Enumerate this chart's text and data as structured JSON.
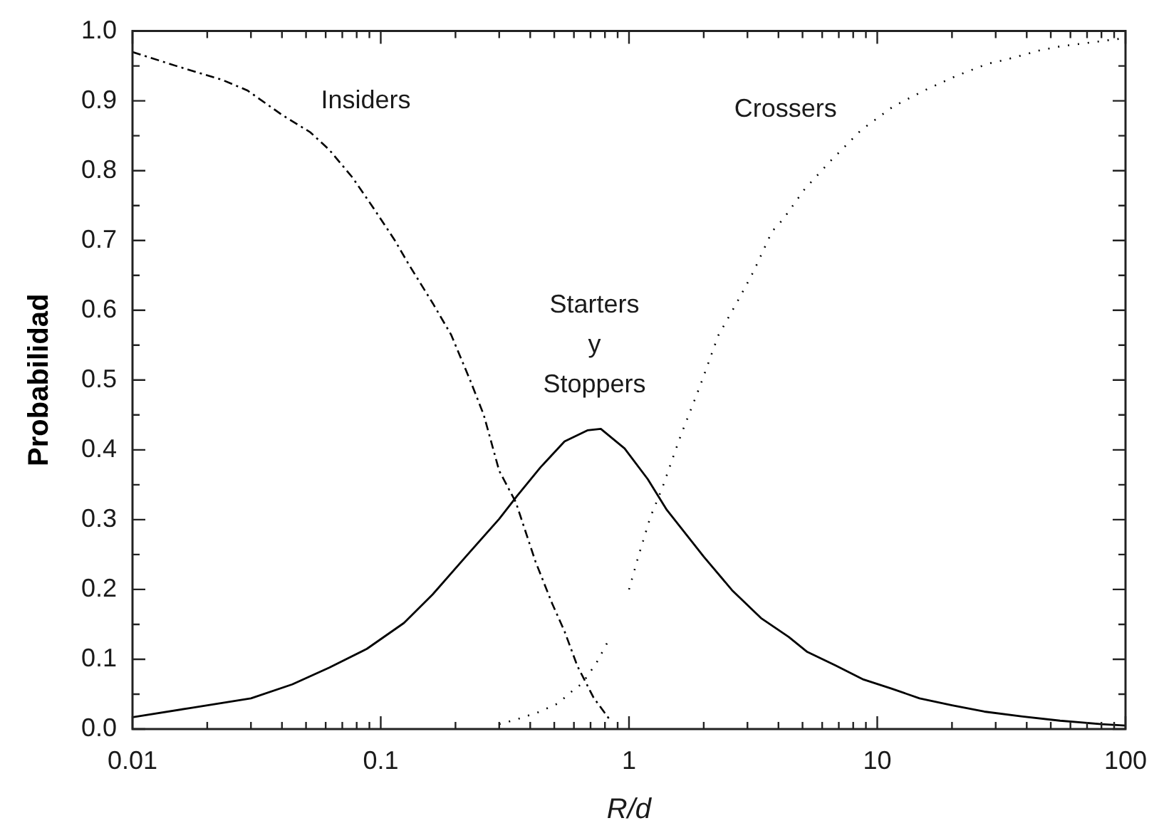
{
  "chart_data": {
    "type": "line",
    "xlabel": "R/d",
    "ylabel": "Probabilidad",
    "log": "x",
    "xlim": [
      0.01,
      100
    ],
    "ylim": [
      0,
      1
    ],
    "xticks": [
      0.01,
      {
        "value": 0.02,
        "label": null
      },
      {
        "value": 0.03,
        "label": null
      },
      {
        "value": 0.04,
        "label": null
      },
      {
        "value": 0.05,
        "label": null
      },
      {
        "value": 0.06,
        "label": null
      },
      {
        "value": 0.07,
        "label": null
      },
      {
        "value": 0.08,
        "label": null
      },
      {
        "value": 0.09,
        "label": null
      },
      0.1,
      {
        "value": 0.2,
        "label": null
      },
      {
        "value": 0.3,
        "label": null
      },
      {
        "value": 0.4,
        "label": null
      },
      {
        "value": 0.5,
        "label": null
      },
      {
        "value": 0.6,
        "label": null
      },
      {
        "value": 0.7,
        "label": null
      },
      {
        "value": 0.8,
        "label": null
      },
      {
        "value": 0.9,
        "label": null
      },
      1,
      {
        "value": 2,
        "label": null
      },
      {
        "value": 3,
        "label": null
      },
      {
        "value": 4,
        "label": null
      },
      {
        "value": 5,
        "label": null
      },
      {
        "value": 6,
        "label": null
      },
      {
        "value": 7,
        "label": null
      },
      {
        "value": 8,
        "label": null
      },
      {
        "value": 9,
        "label": null
      },
      10,
      {
        "value": 20,
        "label": null
      },
      {
        "value": 30,
        "label": null
      },
      {
        "value": 40,
        "label": null
      },
      {
        "value": 50,
        "label": null
      },
      {
        "value": 60,
        "label": null
      },
      {
        "value": 70,
        "label": null
      },
      {
        "value": 80,
        "label": null
      },
      {
        "value": 90,
        "label": null
      },
      100
    ],
    "yticks": [
      {
        "value": 0,
        "label": "0.0"
      },
      {
        "value": 0.05,
        "label": null
      },
      0.1,
      {
        "value": 0.15,
        "label": null
      },
      0.2,
      {
        "value": 0.25,
        "label": null
      },
      0.3,
      {
        "value": 0.35,
        "label": null
      },
      0.4,
      {
        "value": 0.45,
        "label": null
      },
      0.5,
      {
        "value": 0.55,
        "label": null
      },
      0.6,
      {
        "value": 0.65,
        "label": null
      },
      0.7,
      {
        "value": 0.75,
        "label": null
      },
      0.8,
      {
        "value": 0.85,
        "label": null
      },
      0.9,
      {
        "value": 0.95,
        "label": null
      },
      {
        "value": 1,
        "label": "1.0"
      }
    ],
    "series": [
      {
        "name": "Insiders",
        "color": "#000000",
        "line_style": "dashed",
        "x": [
          0.01,
          0.015,
          0.023,
          0.029,
          0.04,
          0.052,
          0.062,
          0.077,
          0.092,
          0.114,
          0.13,
          0.162,
          0.192,
          0.229,
          0.26,
          0.3,
          0.35,
          0.42,
          0.49,
          0.55,
          0.62,
          0.72,
          0.83
        ],
        "values": [
          0.97,
          0.95,
          0.93,
          0.915,
          0.88,
          0.855,
          0.83,
          0.79,
          0.75,
          0.7,
          0.665,
          0.61,
          0.565,
          0.5,
          0.45,
          0.37,
          0.325,
          0.24,
          0.18,
          0.14,
          0.09,
          0.045,
          0.015
        ]
      },
      {
        "name": "Starters y Stoppers",
        "color": "#000000",
        "line_style": "solid",
        "x": [
          0.01,
          0.017,
          0.03,
          0.044,
          0.062,
          0.088,
          0.124,
          0.162,
          0.22,
          0.3,
          0.354,
          0.44,
          0.55,
          0.68,
          0.77,
          0.96,
          1.19,
          1.42,
          2,
          2.6,
          3.4,
          4.4,
          5.2,
          6.8,
          8.8,
          11.4,
          14.8,
          20,
          27,
          38.5,
          54.5,
          80,
          100
        ],
        "values": [
          0.017,
          0.03,
          0.044,
          0.064,
          0.088,
          0.115,
          0.152,
          0.193,
          0.247,
          0.301,
          0.334,
          0.375,
          0.412,
          0.428,
          0.43,
          0.402,
          0.358,
          0.314,
          0.247,
          0.199,
          0.159,
          0.132,
          0.111,
          0.091,
          0.071,
          0.058,
          0.044,
          0.034,
          0.025,
          0.018,
          0.012,
          0.007,
          0.005
        ]
      },
      {
        "name": "Crossers",
        "color": "#000000",
        "line_style": "dotted",
        "x": [
          0.3,
          0.354,
          0.43,
          0.52,
          0.57,
          0.65,
          0.74,
          0.83,
          0.9,
          1,
          1.09,
          1.22,
          1.36,
          1.48,
          1.61,
          1.94,
          2.29,
          2.72,
          3.17,
          3.77,
          4.17,
          5.11,
          6.49,
          8.6,
          11.6,
          15.5,
          20.9,
          27.8,
          33,
          44.8,
          54.5,
          73.8,
          100
        ],
        "values": [
          0.007,
          0.014,
          0.024,
          0.037,
          0.05,
          0.066,
          0.095,
          0.128,
          null,
          0.2,
          0.247,
          0.304,
          0.345,
          0.382,
          0.419,
          0.493,
          0.564,
          0.611,
          0.655,
          0.713,
          0.73,
          0.774,
          0.814,
          0.858,
          0.892,
          0.915,
          0.936,
          0.953,
          0.959,
          0.972,
          0.978,
          0.984,
          0.99
        ]
      }
    ]
  }
}
